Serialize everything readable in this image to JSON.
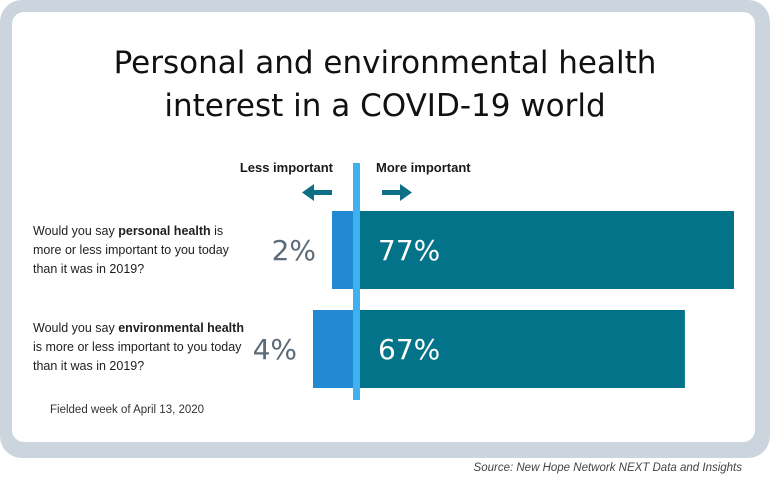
{
  "title_lines": [
    "Personal and environmental health",
    "interest in a COVID-19 world"
  ],
  "footnote": "Fielded week of April 13, 2020",
  "source": "Source: New Hope Network NEXT Data and Insights",
  "colors": {
    "less": "#2389d2",
    "more": "#03738a",
    "center_line": "#3fb0f0",
    "arrow": "#0e6f86",
    "pct_less": "#5d6a77",
    "pct_more": "#ffffff"
  },
  "questions": [
    {
      "pre": "Would you say ",
      "bold": "personal health",
      "post": " is more or less important to you today than it was in 2019?"
    },
    {
      "pre": "Would you say ",
      "bold": "environmental health",
      "post": " is more or less important to you today than it was in 2019?"
    }
  ],
  "chart_data": {
    "type": "bar",
    "orientation": "horizontal-diverging",
    "title": "Personal and environmental health interest in a COVID-19 world",
    "left_label": "Less important",
    "right_label": "More important",
    "categories": [
      "Personal health",
      "Environmental health"
    ],
    "series": [
      {
        "name": "Less important",
        "values": [
          2,
          4
        ],
        "labels": [
          "2%",
          "4%"
        ]
      },
      {
        "name": "More important",
        "values": [
          77,
          67
        ],
        "labels": [
          "77%",
          "67%"
        ]
      }
    ]
  }
}
